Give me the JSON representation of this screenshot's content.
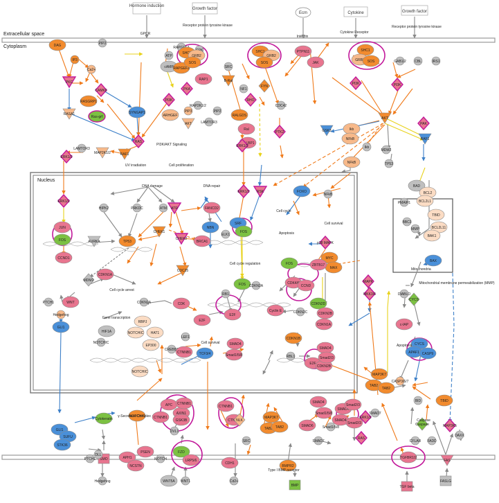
{
  "regions": {
    "extracellular": "Extracellular space",
    "cytoplasm": "Cytoplasm",
    "nucleus": "Nucleus",
    "mitochondria": "Mitochondria"
  },
  "colors": {
    "orange": "#f28b2e",
    "light_orange": "#f7b98a",
    "pale_orange": "#fbdcc4",
    "pink": "#e8758f",
    "magenta_ring": "#c2189a",
    "green": "#7cc142",
    "blue": "#4a90d9",
    "gray": "#bfbfbf",
    "membrane": "#999999",
    "edge_orange": "#f07a1a",
    "edge_blue": "#3c7fc8",
    "edge_yellow": "#e8d21c",
    "edge_gray": "#888888"
  },
  "top_labels": {
    "hormone": "Hormone induction",
    "growth_factor_1": "Growth factor",
    "ecm": "Ecm",
    "cytokine": "Cytokine",
    "growth_factor_2": "Growth factor",
    "rptk_1": "Receptor protein tyrosine kinase",
    "rptk_2": "Receptor protein tyrosine kinase",
    "gpcr": "GPCR",
    "integrin": "Integrin",
    "cytokine_receptor": "Cytokine Receptor"
  },
  "process_labels": {
    "pi3k_signaling": "PI3K/AKT Signaling",
    "cell_prolif": "Cell proliferation",
    "uv": "UV irradiation",
    "dna_damage": "DNA damage",
    "dna_repair": "DNA repair",
    "cell_cycle": "Cell cycle",
    "apoptosis_1": "Apoptosis",
    "cell_survival_1": "Cell survival",
    "cell_cycle_reg": "Cell cycle regulation",
    "cell_cycle_arrest": "Cell cycle arrest",
    "gene_transcription": "Gene transcription",
    "cell_survival_2": "Cell survival",
    "apoptosis_2": "Apoptosis",
    "mmp": "Mitochondrial membrane permeabilization (MMP)",
    "gamma_secretase": "γ-Secretase Complex",
    "type1_bmp": "Type I BMP receptor",
    "caspase": "Caspase"
  },
  "nodes": [
    {
      "id": "dag",
      "label": "DAG"
    },
    {
      "id": "pip2a",
      "label": "PIP2"
    },
    {
      "id": "ip3",
      "label": "IP3"
    },
    {
      "id": "ca2",
      "label": "Ca2+"
    },
    {
      "id": "pkc",
      "label": "PKC"
    },
    {
      "id": "camkii",
      "label": "CAMKII"
    },
    {
      "id": "rasgrp1",
      "label": "RASGRP1"
    },
    {
      "id": "rasgrf",
      "label": "Ras-grf"
    },
    {
      "id": "rasa1",
      "label": "RASA1"
    },
    {
      "id": "syngap1",
      "label": "SYNGAP1"
    },
    {
      "id": "atp",
      "label": "ATP"
    },
    {
      "id": "camp",
      "label": "cAMP"
    },
    {
      "id": "rapgef4",
      "label": "RAPGEF4"
    },
    {
      "id": "crk",
      "label": "CRK"
    },
    {
      "id": "rapgef3",
      "label": "RAPGEF3"
    },
    {
      "id": "pka",
      "label": "PKA"
    },
    {
      "id": "rap1",
      "label": "RAP1"
    },
    {
      "id": "src1",
      "label": "SRC"
    },
    {
      "id": "bc1",
      "label": "B-Raf"
    },
    {
      "id": "pi3k1",
      "label": "PI3K"
    },
    {
      "id": "arhgef",
      "label": "ARHGEF"
    },
    {
      "id": "pip3",
      "label": "PIP3"
    },
    {
      "id": "akt1",
      "label": "AKT"
    },
    {
      "id": "ras",
      "label": "RAS"
    },
    {
      "id": "raf1a",
      "label": "RAF1"
    },
    {
      "id": "lamtor3a",
      "label": "LAMTOR3"
    },
    {
      "id": "map2k12",
      "label": "MAP2K1/2"
    },
    {
      "id": "erk12a",
      "label": "ERK1/2"
    },
    {
      "id": "shc1a",
      "label": "SHC1"
    },
    {
      "id": "grb2a",
      "label": "GRB2"
    },
    {
      "id": "sos1",
      "label": "SOS"
    },
    {
      "id": "map2k12b",
      "label": "MAP2K1/2"
    },
    {
      "id": "pip2b",
      "label": "PIP2"
    },
    {
      "id": "lamtor3b",
      "label": "LAMTOR3"
    },
    {
      "id": "ralgds",
      "label": "RALGDS"
    },
    {
      "id": "rho",
      "label": "RHO"
    },
    {
      "id": "ral",
      "label": "Ral"
    },
    {
      "id": "ralbp1",
      "label": "RALBP1"
    },
    {
      "id": "erk12b",
      "label": "ERK1/2"
    },
    {
      "id": "nf1",
      "label": "NF1"
    },
    {
      "id": "fyn",
      "label": "FYN"
    },
    {
      "id": "cdc42",
      "label": "CDC42"
    },
    {
      "id": "ptk2",
      "label": "PTK2"
    },
    {
      "id": "shc1b",
      "label": "SHC1"
    },
    {
      "id": "grb2b",
      "label": "GRB2"
    },
    {
      "id": "sos2",
      "label": "SOS"
    },
    {
      "id": "ptpn11",
      "label": "PTPN11"
    },
    {
      "id": "jak",
      "label": "JAK"
    },
    {
      "id": "shc1c",
      "label": "SHC1"
    },
    {
      "id": "grb2c",
      "label": "GRB2"
    },
    {
      "id": "sos3",
      "label": "SOS"
    },
    {
      "id": "gab12",
      "label": "GAB1/2"
    },
    {
      "id": "cbl",
      "label": "CBL"
    },
    {
      "id": "irs1",
      "label": "IRS1"
    },
    {
      "id": "pi3k2",
      "label": "PI3K"
    },
    {
      "id": "pi3k3",
      "label": "PI3K"
    },
    {
      "id": "akt2",
      "label": "AKT"
    },
    {
      "id": "gsk3",
      "label": "GSK3"
    },
    {
      "id": "ikb1",
      "label": "Ikb"
    },
    {
      "id": "nfkb1",
      "label": "NFkB"
    },
    {
      "id": "ikb2",
      "label": "Ikb"
    },
    {
      "id": "nfkb2",
      "label": "NFkB"
    },
    {
      "id": "mdm2a",
      "label": "MDM2"
    },
    {
      "id": "tp53a",
      "label": "TP53"
    },
    {
      "id": "bad",
      "label": "BAD"
    },
    {
      "id": "bcl2",
      "label": "BCL2"
    },
    {
      "id": "bcl2l1",
      "label": "BCL2L1"
    },
    {
      "id": "pmaip1",
      "label": "PMAIP1"
    },
    {
      "id": "tbid1",
      "label": "TBID"
    },
    {
      "id": "bbc3",
      "label": "BBC3"
    },
    {
      "id": "bcl2l11",
      "label": "BCL2L11"
    },
    {
      "id": "bak1",
      "label": "BAK1"
    },
    {
      "id": "bax",
      "label": "BAX"
    },
    {
      "id": "mmp",
      "label": "MMP"
    },
    {
      "id": "raf1b",
      "label": "RAF1"
    },
    {
      "id": "pak",
      "label": "PAK"
    },
    {
      "id": "erk12c",
      "label": "ERK1/2"
    },
    {
      "id": "jun",
      "label": "JUN"
    },
    {
      "id": "fos1",
      "label": "FOS"
    },
    {
      "id": "ccnd1",
      "label": "CCND1"
    },
    {
      "id": "hipk2",
      "label": "HIPK2"
    },
    {
      "id": "prkdc",
      "label": "PRKDC"
    },
    {
      "id": "atm",
      "label": "ATM"
    },
    {
      "id": "atr",
      "label": "ATR"
    },
    {
      "id": "fancd2",
      "label": "FANCD2"
    },
    {
      "id": "aurka",
      "label": "AURKA"
    },
    {
      "id": "tp53b",
      "label": "TP53"
    },
    {
      "id": "chek1",
      "label": "CHEK1"
    },
    {
      "id": "chek2",
      "label": "CHEK2"
    },
    {
      "id": "brca1",
      "label": "BRCA1"
    },
    {
      "id": "nbn",
      "label": "NBN"
    },
    {
      "id": "cdc25",
      "label": "CDC25"
    },
    {
      "id": "mdm2b",
      "label": "MDM2"
    },
    {
      "id": "cdkn1a1",
      "label": "CDKN1A"
    },
    {
      "id": "erk12d",
      "label": "ERK1/2"
    },
    {
      "id": "rsk",
      "label": "RSK"
    },
    {
      "id": "srf",
      "label": "SRF"
    },
    {
      "id": "elk1",
      "label": "ELK1"
    },
    {
      "id": "fos2",
      "label": "FOS"
    },
    {
      "id": "foxo",
      "label": "FOXO"
    },
    {
      "id": "nfkb3",
      "label": "NFkB"
    },
    {
      "id": "fos3",
      "label": "FOS"
    },
    {
      "id": "rb1",
      "label": "RB1"
    },
    {
      "id": "cdkn2a1",
      "label": "CDKN2A"
    },
    {
      "id": "cdk46",
      "label": "CDK4/6"
    },
    {
      "id": "ccnd",
      "label": "CCND"
    },
    {
      "id": "cdkn2d",
      "label": "CDKN2D"
    },
    {
      "id": "cdkn2c",
      "label": "CDKN2C"
    },
    {
      "id": "cdkn2b",
      "label": "CDKN2B"
    },
    {
      "id": "cdkn1a2",
      "label": "CDKN1A"
    },
    {
      "id": "e2f1",
      "label": "E2F"
    },
    {
      "id": "cdkn2a2",
      "label": "CDKN2A"
    },
    {
      "id": "cdk",
      "label": "CDK"
    },
    {
      "id": "e2f2",
      "label": "E2F"
    },
    {
      "id": "cyclin",
      "label": "Cyclin E"
    },
    {
      "id": "myc",
      "label": "MYC"
    },
    {
      "id": "max",
      "label": "MAX"
    },
    {
      "id": "zbtb17",
      "label": "ZBTB17"
    },
    {
      "id": "fos4",
      "label": "FOS"
    },
    {
      "id": "p38",
      "label": "p38 MAPK"
    },
    {
      "id": "mapk",
      "label": "MAPK"
    },
    {
      "id": "mkk36",
      "label": "MKK3/6"
    },
    {
      "id": "ptch1",
      "label": "PTCH1"
    },
    {
      "id": "wnt",
      "label": "WNT"
    },
    {
      "id": "hedgehog1",
      "label": "Hedgehog"
    },
    {
      "id": "gli1a",
      "label": "GLI1"
    },
    {
      "id": "rbpj",
      "label": "RBPJ"
    },
    {
      "id": "hat1",
      "label": "HAT1"
    },
    {
      "id": "notchic1",
      "label": "NOTCHIC"
    },
    {
      "id": "ep300",
      "label": "EP300"
    },
    {
      "id": "hif1a",
      "label": "HIF1A"
    },
    {
      "id": "notchic2",
      "label": "NOTCHIC"
    },
    {
      "id": "notchic3",
      "label": "NOTCHIC"
    },
    {
      "id": "lef1",
      "label": "LEF1"
    },
    {
      "id": "crebbp",
      "label": "CREBBP"
    },
    {
      "id": "ctnnb1a",
      "label": "CTNNB1"
    },
    {
      "id": "tcf34",
      "label": "TCF3/4"
    },
    {
      "id": "smad4a",
      "label": "SMAD4"
    },
    {
      "id": "smad158a",
      "label": "Smad1/5/8"
    },
    {
      "id": "cdkn1b",
      "label": "CDKN1B"
    },
    {
      "id": "rbl1",
      "label": "RBL1"
    },
    {
      "id": "e2f3",
      "label": "E2F"
    },
    {
      "id": "smad4b",
      "label": "SMAD4"
    },
    {
      "id": "cdkn2b2",
      "label": "CDKN2B"
    },
    {
      "id": "smad23a",
      "label": "Smad2/3"
    },
    {
      "id": "map3k7a",
      "label": "MAP3K7"
    },
    {
      "id": "tab2a",
      "label": "TAB2"
    },
    {
      "id": "tab2b",
      "label": "TAB2"
    },
    {
      "id": "diablo",
      "label": "DIABLO"
    },
    {
      "id": "cycs1",
      "label": "CYCS"
    },
    {
      "id": "ciap",
      "label": "c-IAP"
    },
    {
      "id": "cycs2",
      "label": "CYCS"
    },
    {
      "id": "apaf1",
      "label": "APAF1"
    },
    {
      "id": "casp9",
      "label": "CASP9"
    },
    {
      "id": "casp367",
      "label": "CASP3/6/7"
    },
    {
      "id": "bid",
      "label": "BID"
    },
    {
      "id": "tbid2",
      "label": "TBID"
    },
    {
      "id": "casp8",
      "label": "Caspase"
    },
    {
      "id": "cflar",
      "label": "CFLAR"
    },
    {
      "id": "fadd",
      "label": "FADD"
    },
    {
      "id": "map3k5",
      "label": "MAP3K5"
    },
    {
      "id": "daxx",
      "label": "DAXX"
    },
    {
      "id": "fas",
      "label": "FAS"
    },
    {
      "id": "faslg",
      "label": "FASLG"
    },
    {
      "id": "gli1b",
      "label": "GLI1"
    },
    {
      "id": "sufu",
      "label": "SUFU"
    },
    {
      "id": "stk36",
      "label": "STK36"
    },
    {
      "id": "notchic4",
      "label": "NOTCHIC"
    },
    {
      "id": "ctnnb1b",
      "label": "CTNNB1"
    },
    {
      "id": "apc",
      "label": "APC"
    },
    {
      "id": "axin1",
      "label": "AXIN1"
    },
    {
      "id": "ctnnb1c",
      "label": "CTNNB1"
    },
    {
      "id": "gsk3b",
      "label": "GSK3B"
    },
    {
      "id": "ctnnb1d",
      "label": "CTNNB1"
    },
    {
      "id": "ctnnd",
      "label": "CTNND"
    },
    {
      "id": "nlk",
      "label": "NLK"
    },
    {
      "id": "map3k7b",
      "label": "MAP3K7"
    },
    {
      "id": "tab2c",
      "label": "TAB2"
    },
    {
      "id": "tab2d",
      "label": "TAB2"
    },
    {
      "id": "smad4c",
      "label": "SMAD4"
    },
    {
      "id": "smad158b",
      "label": "Smad1/5/8"
    },
    {
      "id": "smad158c",
      "label": "Smad1/5/8"
    },
    {
      "id": "smad4d",
      "label": "SMAD4"
    },
    {
      "id": "smad6",
      "label": "SMAD6"
    },
    {
      "id": "smad4e",
      "label": "SMAD4"
    },
    {
      "id": "smad23b",
      "label": "Smad2/3"
    },
    {
      "id": "smad23c",
      "label": "Smad2/3"
    },
    {
      "id": "smad7a",
      "label": "SMAD7"
    },
    {
      "id": "smad7b",
      "label": "SMAD7"
    },
    {
      "id": "erk12e",
      "label": "ERK1/2"
    },
    {
      "id": "ras2",
      "label": "RAS"
    },
    {
      "id": "src2",
      "label": "SRC"
    },
    {
      "id": "dvl1",
      "label": "DVL1"
    },
    {
      "id": "ptch1b",
      "label": "PTCH1"
    },
    {
      "id": "smo",
      "label": "SMO"
    },
    {
      "id": "aph1",
      "label": "APH1"
    },
    {
      "id": "psen",
      "label": "PSEN"
    },
    {
      "id": "ncstn",
      "label": "NCSTN"
    },
    {
      "id": "notch",
      "label": "NOTCH"
    },
    {
      "id": "fzd",
      "label": "FZD"
    },
    {
      "id": "lrp",
      "label": "LRP5/6"
    },
    {
      "id": "cdh1",
      "label": "CDH1"
    },
    {
      "id": "cd2",
      "label": "Cd2+"
    },
    {
      "id": "wnt5a",
      "label": "WNT5A"
    },
    {
      "id": "wnt1",
      "label": "WNT1"
    },
    {
      "id": "hedgehog2",
      "label": "Hedgehog"
    },
    {
      "id": "bmpr2",
      "label": "BMPR2"
    },
    {
      "id": "bmp",
      "label": "BMP"
    },
    {
      "id": "tgfbr",
      "label": "TGFBR1/2"
    },
    {
      "id": "tgfb",
      "label": "TGF beta"
    },
    {
      "id": "cytokeratin",
      "label": "Cytokeratin"
    },
    {
      "id": "dll",
      "label": "DLL"
    }
  ]
}
